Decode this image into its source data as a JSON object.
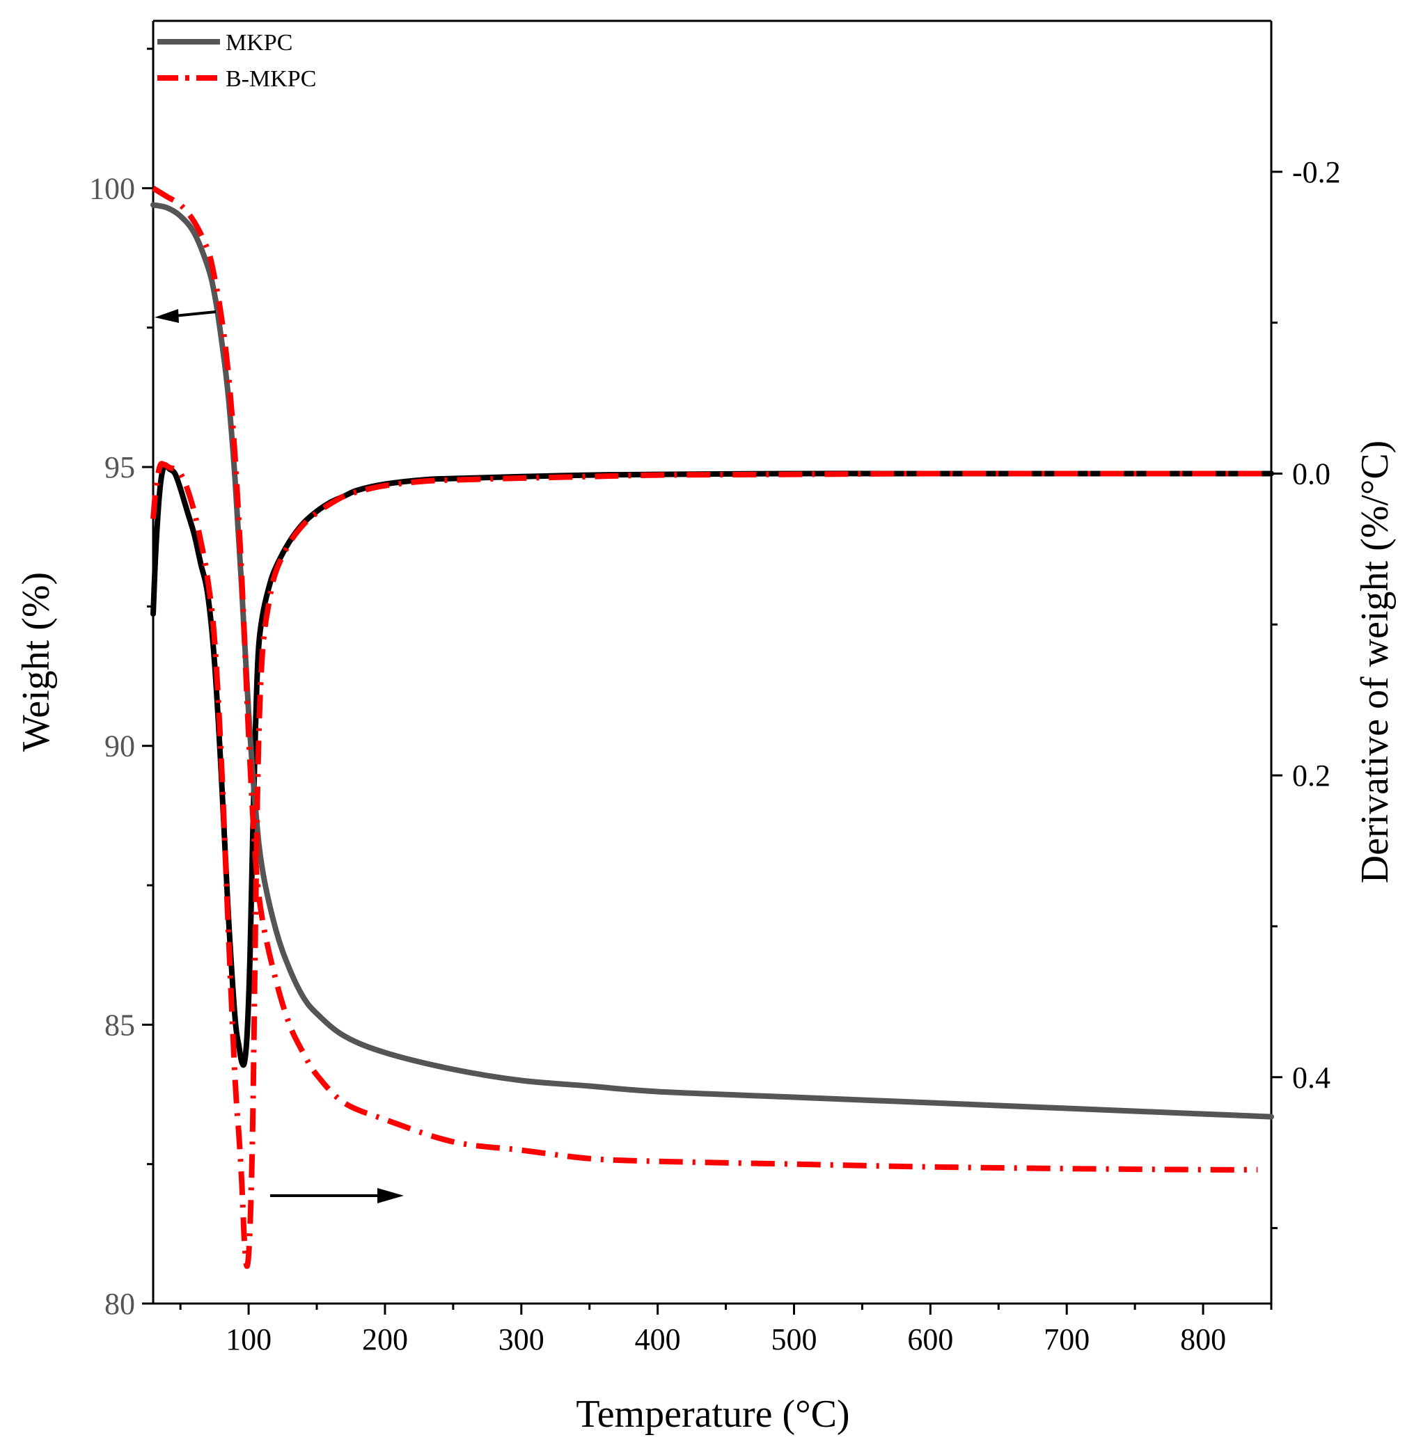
{
  "chart_data": {
    "type": "line",
    "title": "",
    "xlabel": "Temperature (°C)",
    "ylabel_left": "Weight (%)",
    "ylabel_right": "Derivative of weight (%/°C)",
    "xlim": [
      30,
      850
    ],
    "ylim_left": [
      80,
      103
    ],
    "ylim_right_top_to_bottom": [
      -0.3,
      0.55
    ],
    "x_ticks": [
      100,
      200,
      300,
      400,
      500,
      600,
      700,
      800
    ],
    "y_left_ticks": [
      80,
      85,
      90,
      95,
      100
    ],
    "y_right_ticks": [
      -0.2,
      0.0,
      0.2,
      0.4
    ],
    "y_right_tick_labels": [
      "-0.2",
      "0.0",
      "0.2",
      "0.4"
    ],
    "legend": {
      "placement": "top-left",
      "entries": [
        {
          "name": "MKPC",
          "color": "#555555",
          "style": "solid"
        },
        {
          "name": "B-MKPC",
          "color": "#ff0000",
          "style": "dash-dot"
        }
      ]
    },
    "series": [
      {
        "name": "MKPC",
        "axis": "left",
        "kind": "weight",
        "color": "#555555",
        "style": "solid",
        "x": [
          30,
          40,
          50,
          60,
          70,
          75,
          80,
          85,
          90,
          95,
          100,
          105,
          110,
          120,
          130,
          140,
          150,
          170,
          200,
          250,
          300,
          350,
          400,
          500,
          600,
          700,
          800,
          850
        ],
        "y": [
          99.7,
          99.65,
          99.5,
          99.2,
          98.6,
          98.1,
          97.3,
          96.3,
          94.8,
          92.8,
          90.6,
          88.9,
          87.8,
          86.7,
          86.0,
          85.5,
          85.2,
          84.8,
          84.5,
          84.2,
          84.0,
          83.9,
          83.8,
          83.7,
          83.6,
          83.5,
          83.4,
          83.35
        ]
      },
      {
        "name": "B-MKPC",
        "axis": "left",
        "kind": "weight",
        "color": "#ff0000",
        "style": "dash-dot",
        "x": [
          30,
          40,
          50,
          60,
          70,
          75,
          80,
          85,
          90,
          95,
          100,
          105,
          110,
          120,
          130,
          140,
          150,
          170,
          200,
          250,
          300,
          350,
          400,
          500,
          600,
          700,
          800,
          840
        ],
        "y": [
          100.0,
          99.85,
          99.7,
          99.4,
          98.9,
          98.4,
          97.7,
          96.7,
          95.2,
          93.0,
          90.2,
          88.0,
          86.9,
          85.8,
          85.0,
          84.5,
          84.1,
          83.6,
          83.3,
          82.9,
          82.75,
          82.6,
          82.55,
          82.5,
          82.45,
          82.42,
          82.4,
          82.4
        ]
      },
      {
        "name": "MKPC DTG",
        "axis": "right",
        "kind": "derivative",
        "color": "#000000",
        "style": "solid",
        "x": [
          30,
          32,
          35,
          38,
          42,
          46,
          50,
          55,
          60,
          65,
          70,
          75,
          80,
          85,
          90,
          93,
          95,
          97,
          99,
          101,
          103,
          105,
          107,
          110,
          115,
          120,
          130,
          140,
          150,
          160,
          170,
          180,
          200,
          230,
          260,
          300,
          350,
          400,
          500,
          600,
          700,
          800,
          850
        ],
        "y": [
          0.093,
          0.05,
          0.01,
          -0.005,
          -0.003,
          0.0,
          0.01,
          0.025,
          0.04,
          0.06,
          0.08,
          0.125,
          0.2,
          0.29,
          0.36,
          0.38,
          0.39,
          0.39,
          0.37,
          0.32,
          0.24,
          0.17,
          0.12,
          0.095,
          0.075,
          0.062,
          0.045,
          0.033,
          0.025,
          0.019,
          0.015,
          0.011,
          0.007,
          0.004,
          0.003,
          0.002,
          0.001,
          0.0005,
          0.0,
          0.0,
          0.0,
          0.0,
          0.0
        ]
      },
      {
        "name": "B-MKPC DTG",
        "axis": "right",
        "kind": "derivative",
        "color": "#ff0000",
        "style": "dash-dot",
        "x": [
          30,
          32,
          35,
          38,
          42,
          46,
          50,
          55,
          60,
          65,
          70,
          75,
          80,
          85,
          90,
          93,
          95,
          97,
          99,
          101,
          103,
          105,
          107,
          110,
          115,
          120,
          130,
          140,
          150,
          160,
          170,
          180,
          200,
          230,
          260,
          300,
          350,
          400,
          500,
          600,
          700,
          800,
          850
        ],
        "y": [
          0.03,
          0.01,
          -0.005,
          -0.006,
          -0.004,
          -0.003,
          0.0,
          0.01,
          0.025,
          0.045,
          0.07,
          0.11,
          0.19,
          0.3,
          0.4,
          0.44,
          0.47,
          0.51,
          0.525,
          0.5,
          0.43,
          0.3,
          0.19,
          0.12,
          0.085,
          0.065,
          0.046,
          0.034,
          0.026,
          0.02,
          0.015,
          0.012,
          0.008,
          0.005,
          0.004,
          0.003,
          0.002,
          0.001,
          0.0005,
          0.0,
          0.0,
          0.0,
          0.0
        ]
      }
    ]
  }
}
